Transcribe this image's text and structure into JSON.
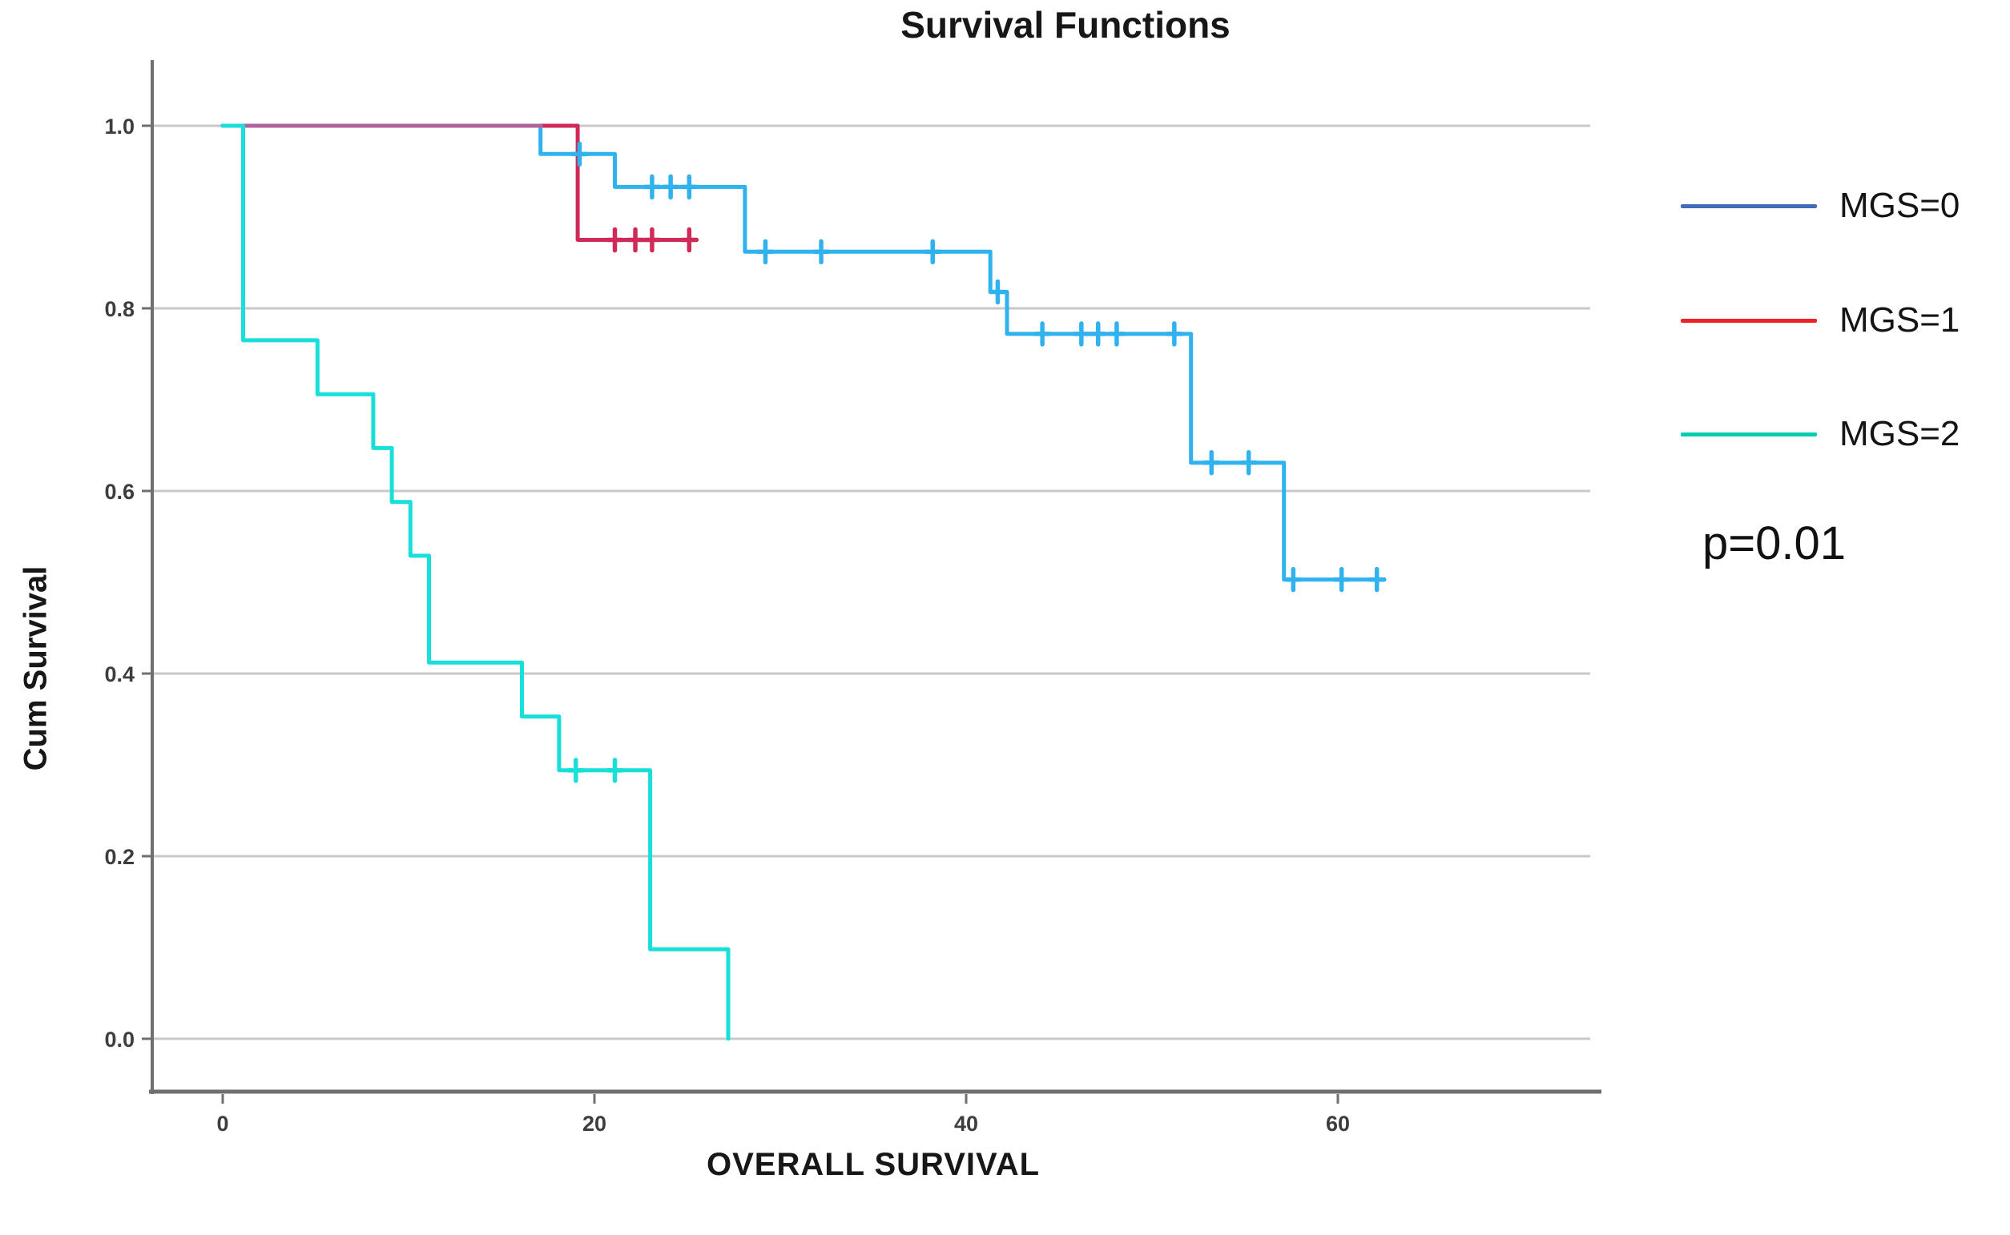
{
  "title": "Survival Functions",
  "annotation": {
    "p_value": "p=0.01"
  },
  "legend": [
    {
      "label": "MGS=0",
      "color": "#3e6db5"
    },
    {
      "label": "MGS=1",
      "color": "#ec2426"
    },
    {
      "label": "MGS=2",
      "color": "#00cdb2"
    }
  ],
  "theme": {
    "grid_color": "#c8c8c8",
    "axis_color": "#6f6f6f",
    "tick_label_color": "#3d3d3d"
  },
  "chart_data": {
    "type": "line",
    "subtype": "kaplan-meier-step-function",
    "title": "Survival Functions",
    "xlabel": "OVERALL SURVIVAL",
    "ylabel": "Cum Survival",
    "x_range_visible": [
      -3.8,
      73.6
    ],
    "y_range_visible": [
      -0.06,
      1.07
    ],
    "grid": "horizontal",
    "legend_position": "right",
    "annotation": "p=0.01",
    "x_ticks": [
      {
        "v": 0,
        "label": "0"
      },
      {
        "v": 20,
        "label": "20"
      },
      {
        "v": 40,
        "label": "40"
      },
      {
        "v": 60,
        "label": "60"
      }
    ],
    "y_ticks": [
      {
        "v": 1.0,
        "label": "1.0"
      },
      {
        "v": 0.8,
        "label": "0.8"
      },
      {
        "v": 0.6,
        "label": "0.6"
      },
      {
        "v": 0.4,
        "label": "0.4"
      },
      {
        "v": 0.2,
        "label": "0.2"
      },
      {
        "v": 0.0,
        "label": "0.0"
      }
    ],
    "series": [
      {
        "name": "MGS=1",
        "legend_color": "#ec2426",
        "plot_color": "#cf2a58",
        "steps": [
          [
            0,
            1.0
          ],
          [
            19.1,
            1.0
          ],
          [
            19.1,
            0.875
          ],
          [
            25.5,
            0.875
          ]
        ],
        "censored": [
          [
            21.1,
            0.875
          ],
          [
            22.2,
            0.875
          ],
          [
            23.1,
            0.875
          ],
          [
            25.1,
            0.875
          ]
        ]
      },
      {
        "name": "MGS=0",
        "legend_color": "#3e6db5",
        "plot_color": "#30b2ef",
        "steps": [
          [
            0,
            1.0
          ],
          [
            17.1,
            1.0
          ],
          [
            17.1,
            0.969
          ],
          [
            21.1,
            0.969
          ],
          [
            21.1,
            0.933
          ],
          [
            28.1,
            0.933
          ],
          [
            28.1,
            0.862
          ],
          [
            41.3,
            0.862
          ],
          [
            41.3,
            0.818
          ],
          [
            42.2,
            0.818
          ],
          [
            42.2,
            0.772
          ],
          [
            52.1,
            0.772
          ],
          [
            52.1,
            0.631
          ],
          [
            57.1,
            0.631
          ],
          [
            57.1,
            0.503
          ],
          [
            62.5,
            0.503
          ]
        ],
        "censored": [
          [
            19.2,
            0.969
          ],
          [
            23.1,
            0.933
          ],
          [
            24.1,
            0.933
          ],
          [
            25.1,
            0.933
          ],
          [
            29.2,
            0.862
          ],
          [
            32.2,
            0.862
          ],
          [
            38.2,
            0.862
          ],
          [
            41.7,
            0.818
          ],
          [
            44.1,
            0.772
          ],
          [
            46.2,
            0.772
          ],
          [
            47.1,
            0.772
          ],
          [
            48.1,
            0.772
          ],
          [
            51.2,
            0.772
          ],
          [
            53.2,
            0.631
          ],
          [
            55.2,
            0.631
          ],
          [
            57.6,
            0.503
          ],
          [
            60.2,
            0.503
          ],
          [
            62.1,
            0.503
          ]
        ]
      },
      {
        "name": "MGS=2",
        "legend_color": "#00cdb2",
        "plot_color": "#18dfd9",
        "steps": [
          [
            0,
            1.0
          ],
          [
            1.1,
            1.0
          ],
          [
            1.1,
            0.765
          ],
          [
            5.1,
            0.765
          ],
          [
            5.1,
            0.706
          ],
          [
            8.1,
            0.706
          ],
          [
            8.1,
            0.647
          ],
          [
            9.1,
            0.647
          ],
          [
            9.1,
            0.588
          ],
          [
            10.1,
            0.588
          ],
          [
            10.1,
            0.529
          ],
          [
            11.1,
            0.529
          ],
          [
            11.1,
            0.412
          ],
          [
            16.1,
            0.412
          ],
          [
            16.1,
            0.353
          ],
          [
            18.1,
            0.353
          ],
          [
            18.1,
            0.294
          ],
          [
            23.0,
            0.294
          ],
          [
            23.0,
            0.098
          ],
          [
            27.2,
            0.098
          ],
          [
            27.2,
            0.0
          ]
        ],
        "censored": [
          [
            19.0,
            0.294
          ],
          [
            21.1,
            0.294
          ]
        ]
      }
    ],
    "overlap_segment": {
      "note": "MGS=0 and MGS=1 overlap at survival 1.0 producing a blended purple line",
      "color": "#b0639c",
      "from": [
        0,
        1.0
      ],
      "to": [
        17.1,
        1.0
      ]
    }
  }
}
